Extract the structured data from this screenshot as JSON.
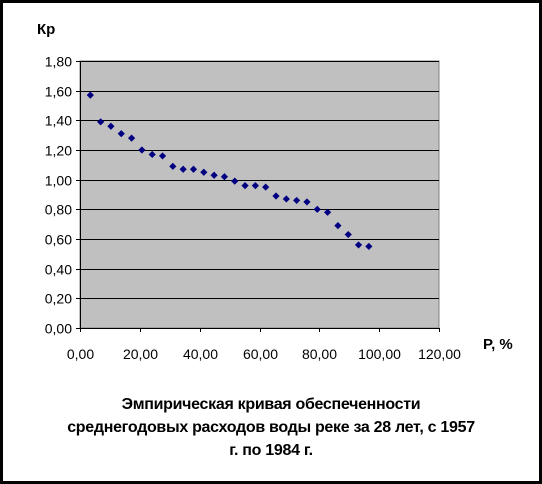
{
  "chart_data": {
    "type": "scatter",
    "title_lines": [
      "Эмпирическая кривая обеспеченности",
      "среднегодовых расходов воды реке за 28 лет, с 1957",
      "г. по 1984 г."
    ],
    "xlabel": "P, %",
    "ylabel": "Кр",
    "xlim": [
      0,
      120
    ],
    "ylim": [
      0,
      1.8
    ],
    "x_ticks": [
      "0,00",
      "20,00",
      "40,00",
      "60,00",
      "80,00",
      "100,00",
      "120,00"
    ],
    "y_ticks": [
      "0,00",
      "0,20",
      "0,40",
      "0,60",
      "0,80",
      "1,00",
      "1,20",
      "1,40",
      "1,60",
      "1,80"
    ],
    "x_tick_values": [
      0,
      20,
      40,
      60,
      80,
      100,
      120
    ],
    "y_tick_values": [
      0,
      0.2,
      0.4,
      0.6,
      0.8,
      1.0,
      1.2,
      1.4,
      1.6,
      1.8
    ],
    "grid": "horizontal",
    "legend": "none",
    "series": [
      {
        "marker": "diamond",
        "points": [
          {
            "x": 3.45,
            "y": 1.57
          },
          {
            "x": 6.9,
            "y": 1.39
          },
          {
            "x": 10.34,
            "y": 1.36
          },
          {
            "x": 13.79,
            "y": 1.31
          },
          {
            "x": 17.24,
            "y": 1.28
          },
          {
            "x": 20.69,
            "y": 1.2
          },
          {
            "x": 24.14,
            "y": 1.17
          },
          {
            "x": 27.59,
            "y": 1.16
          },
          {
            "x": 31.03,
            "y": 1.09
          },
          {
            "x": 34.48,
            "y": 1.07
          },
          {
            "x": 37.93,
            "y": 1.07
          },
          {
            "x": 41.38,
            "y": 1.05
          },
          {
            "x": 44.83,
            "y": 1.03
          },
          {
            "x": 48.28,
            "y": 1.02
          },
          {
            "x": 51.72,
            "y": 0.99
          },
          {
            "x": 55.17,
            "y": 0.96
          },
          {
            "x": 58.62,
            "y": 0.96
          },
          {
            "x": 62.07,
            "y": 0.95
          },
          {
            "x": 65.52,
            "y": 0.89
          },
          {
            "x": 68.97,
            "y": 0.87
          },
          {
            "x": 72.41,
            "y": 0.86
          },
          {
            "x": 75.86,
            "y": 0.85
          },
          {
            "x": 79.31,
            "y": 0.8
          },
          {
            "x": 82.76,
            "y": 0.78
          },
          {
            "x": 86.21,
            "y": 0.69
          },
          {
            "x": 89.66,
            "y": 0.63
          },
          {
            "x": 93.1,
            "y": 0.56
          },
          {
            "x": 96.55,
            "y": 0.55
          }
        ]
      }
    ]
  },
  "colors": {
    "plot_background": "#c0c0c0",
    "marker": "#000080",
    "gridline": "#000000",
    "text": "#000000"
  }
}
